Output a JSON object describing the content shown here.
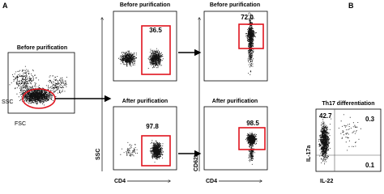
{
  "panel_a": {
    "letter": "A",
    "gating": {
      "title": "Before purification",
      "x_label": "FSC",
      "y_label": "SSC"
    },
    "ssc_label": "SSC",
    "cd62l_label": "CD62L",
    "cd4_label_1": "CD4",
    "cd4_label_2": "CD4",
    "plots": [
      {
        "title": "Before purification",
        "gate_value": "36.5"
      },
      {
        "title": "After purification",
        "gate_value": "97.8"
      },
      {
        "title": "Before purification",
        "gate_value": "72.0"
      },
      {
        "title": "After purification",
        "gate_value": "98.5"
      }
    ]
  },
  "panel_b": {
    "letter": "B",
    "title": "Th17 differentiation",
    "y_label": "IL-17a",
    "x_label": "IL-22",
    "quadrants": {
      "upper_left": "42.7",
      "upper_right": "0.3",
      "lower_right": "0.1"
    }
  }
}
